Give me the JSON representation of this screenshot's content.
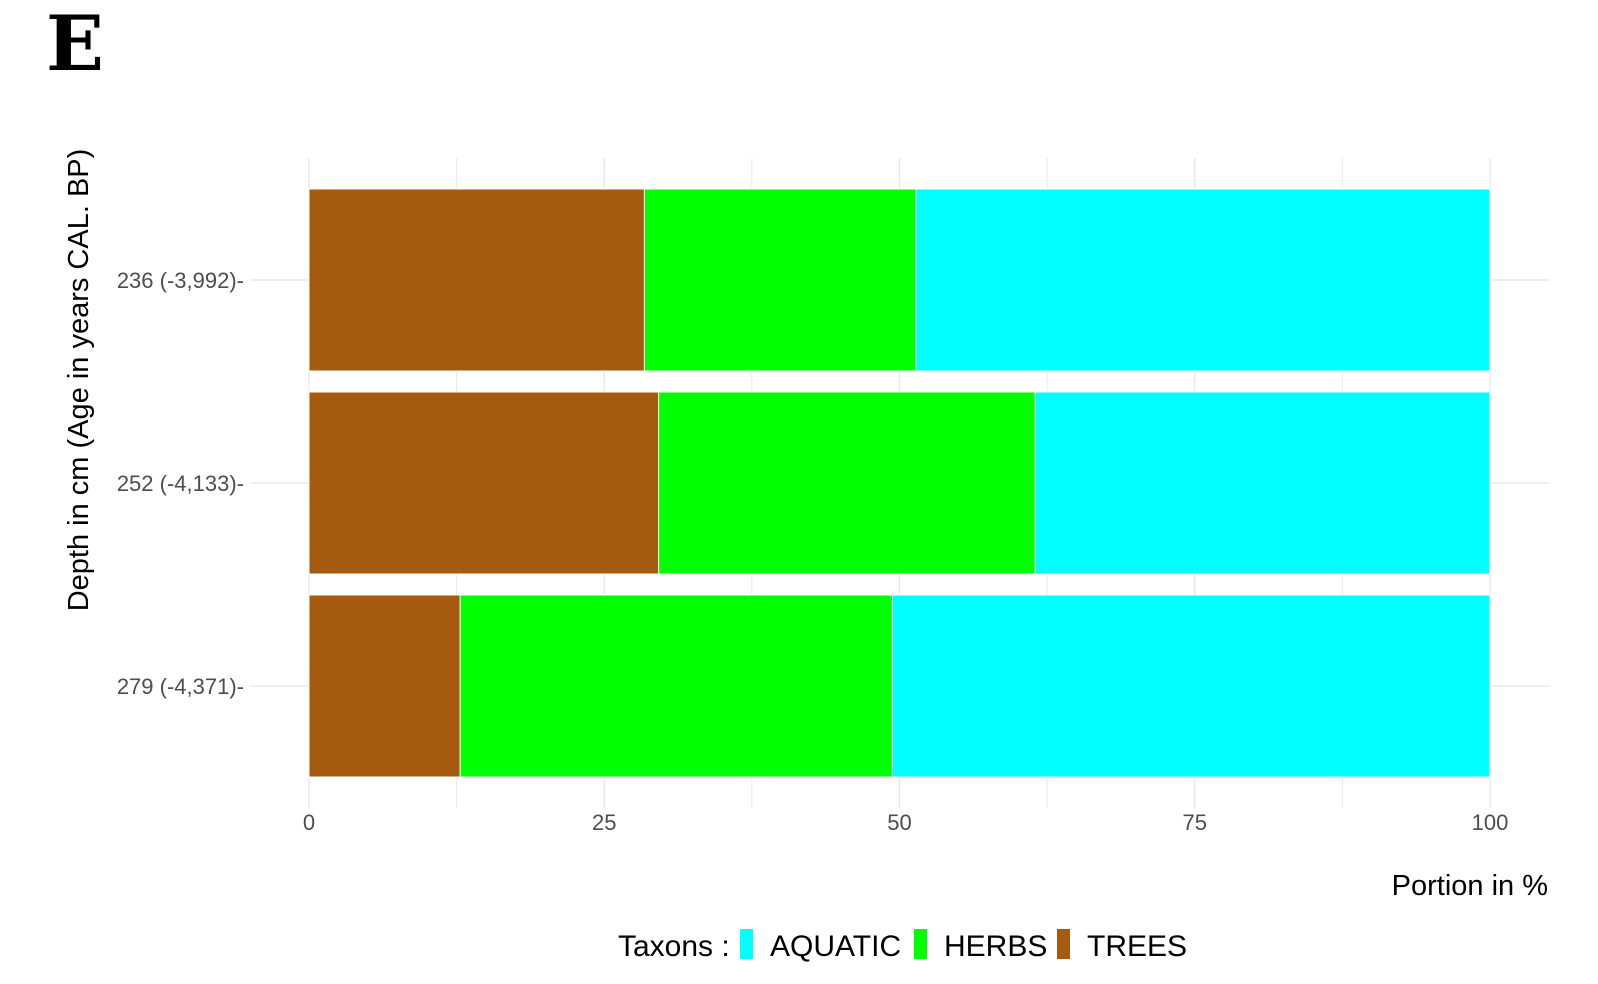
{
  "panel_label": "E",
  "chart_data": {
    "type": "bar",
    "orientation": "horizontal",
    "stacked": true,
    "categories": [
      "236 (-3,992)",
      "252 (-4,133)",
      "279 (-4,371)"
    ],
    "series": [
      {
        "name": "TREES",
        "color": "#A65A0F",
        "values": [
          28.4,
          29.6,
          12.8
        ]
      },
      {
        "name": "HERBS",
        "color": "#00FF00",
        "values": [
          23.0,
          31.9,
          36.6
        ]
      },
      {
        "name": "AQUATIC",
        "color": "#00FFFF",
        "values": [
          48.6,
          38.5,
          50.6
        ]
      }
    ],
    "xlim": [
      0,
      100
    ],
    "xticks": [
      "0",
      "25",
      "50",
      "75",
      "100"
    ],
    "xlabel": "Portion in %",
    "ylabel": "Depth in cm (Age in years CAL. BP)",
    "grid": true,
    "legend": {
      "title": "Taxons :",
      "position": "bottom",
      "order": [
        "AQUATIC",
        "HERBS",
        "TREES"
      ]
    }
  }
}
